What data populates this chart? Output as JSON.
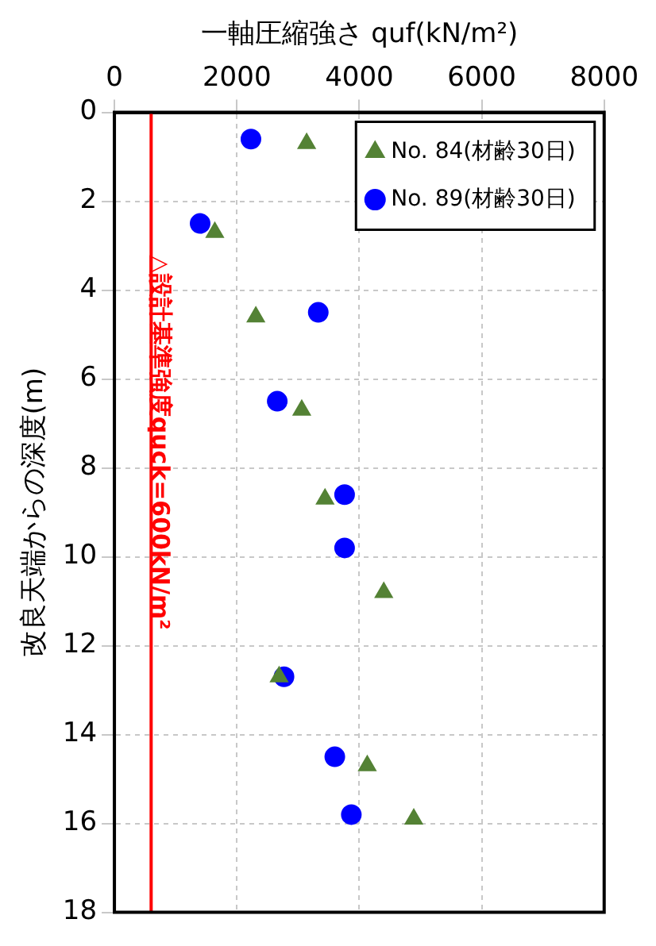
{
  "chart_data": {
    "type": "scatter",
    "xlabel": "一軸圧縮強さ quf(kN/m²)",
    "ylabel": "改良天端からの深度(m)",
    "xlim": [
      0,
      8000
    ],
    "xticks": [
      0,
      2000,
      4000,
      6000,
      8000
    ],
    "ylim": [
      18,
      0
    ],
    "yticks": [
      0,
      2,
      4,
      6,
      8,
      10,
      12,
      14,
      16,
      18
    ],
    "grid": true,
    "legend": "top right",
    "series": [
      {
        "name": "No. 84(材齢30日)",
        "color": "#548235",
        "marker": "triangle",
        "x": [
          3140,
          1640,
          2310,
          3060,
          3440,
          4400,
          2690,
          4130,
          4890
        ],
        "values": [
          0.7,
          2.7,
          4.6,
          6.7,
          8.7,
          10.8,
          12.7,
          14.7,
          15.9
        ]
      },
      {
        "name": "No. 89(材齢30日)",
        "color": "#0000ff",
        "marker": "circle",
        "x": [
          2230,
          1400,
          3330,
          2660,
          3760,
          3760,
          2770,
          3600,
          3870
        ],
        "values": [
          0.6,
          2.5,
          4.5,
          6.5,
          8.6,
          9.8,
          12.7,
          14.5,
          15.8
        ]
      }
    ],
    "ref_lines": [
      {
        "axis": "x",
        "value": 600,
        "label": "△設計基準強度quck=600kN/m²",
        "color": "#ff0000"
      }
    ]
  }
}
